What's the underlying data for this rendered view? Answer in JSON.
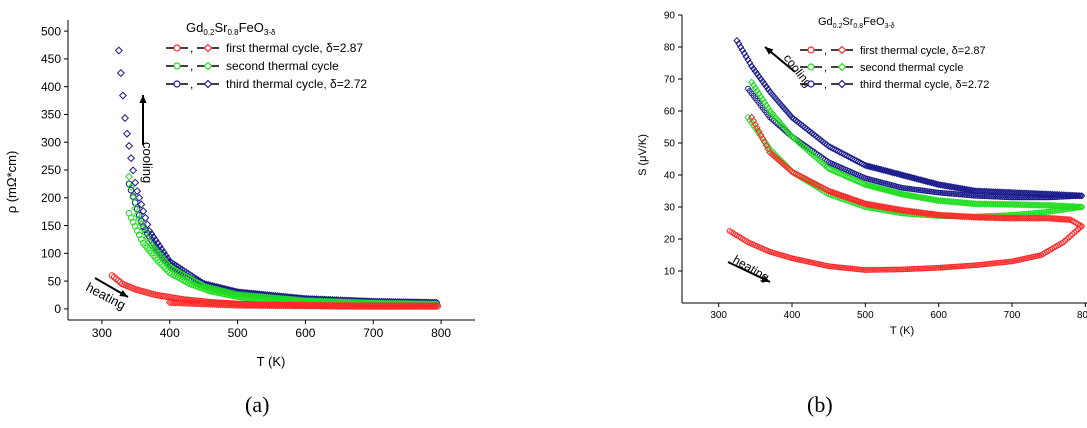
{
  "compound": {
    "base": "Gd",
    "sub1": "0.2",
    "el2": "Sr",
    "sub2": "0.8",
    "el3": "FeO",
    "sub3": "3-δ"
  },
  "legend": [
    {
      "name": "first thermal cycle, δ=2.87",
      "color": "#ff2a2a"
    },
    {
      "name": "second thermal cycle",
      "color": "#22dd22"
    },
    {
      "name": "third thermal cycle, δ=2.72",
      "color": "#1a1a8c"
    }
  ],
  "chart_data": [
    {
      "type": "scatter",
      "panel_label": "(a)",
      "xlabel": "T (K)",
      "ylabel": "ρ (mΩ*cm)",
      "xlim": [
        250,
        850
      ],
      "ylim": [
        -20,
        520
      ],
      "xticks": [
        300,
        400,
        500,
        600,
        700,
        800
      ],
      "yticks": [
        0,
        50,
        100,
        150,
        200,
        250,
        300,
        350,
        400,
        450,
        500
      ],
      "annotations": [
        "cooling",
        "heating"
      ],
      "series": [
        {
          "name": "first thermal cycle, δ=2.87",
          "segment": "heating",
          "x": [
            315,
            330,
            350,
            380,
            420,
            460,
            500,
            550,
            600,
            650,
            700,
            750,
            795
          ],
          "y": [
            60,
            45,
            35,
            25,
            17,
            12,
            9,
            7,
            6,
            5,
            5,
            5,
            5
          ]
        },
        {
          "name": "first thermal cycle, δ=2.87",
          "segment": "cooling",
          "x": [
            795,
            700,
            600,
            500,
            400
          ],
          "y": [
            5,
            5,
            6,
            7,
            12
          ]
        },
        {
          "name": "second thermal cycle",
          "segment": "heating",
          "x": [
            340,
            360,
            380,
            400,
            430,
            460,
            500,
            550,
            600,
            650,
            700,
            750,
            795
          ],
          "y": [
            172,
            120,
            90,
            65,
            45,
            32,
            22,
            15,
            12,
            10,
            9,
            8,
            8
          ]
        },
        {
          "name": "second thermal cycle",
          "segment": "cooling",
          "x": [
            795,
            700,
            600,
            500,
            450,
            400,
            370,
            350,
            340
          ],
          "y": [
            8,
            10,
            14,
            25,
            40,
            75,
            120,
            175,
            238
          ]
        },
        {
          "name": "third thermal cycle, δ=2.72",
          "segment": "heating",
          "x": [
            340,
            360,
            380,
            400,
            430,
            460,
            500,
            550,
            600,
            650,
            700,
            750,
            795
          ],
          "y": [
            225,
            150,
            110,
            80,
            55,
            40,
            30,
            22,
            18,
            15,
            13,
            12,
            11
          ]
        },
        {
          "name": "third thermal cycle, δ=2.72",
          "segment": "cooling",
          "x": [
            795,
            700,
            600,
            500,
            450,
            400,
            370,
            350,
            335,
            325
          ],
          "y": [
            11,
            13,
            18,
            30,
            45,
            85,
            140,
            220,
            330,
            465
          ]
        }
      ]
    },
    {
      "type": "scatter",
      "panel_label": "(b)",
      "xlabel": "T (K)",
      "ylabel": "S (μV/K)",
      "xlim": [
        250,
        850
      ],
      "ylim": [
        0,
        90
      ],
      "xticks": [
        300,
        400,
        500,
        600,
        700,
        800
      ],
      "yticks": [
        10,
        20,
        30,
        40,
        50,
        60,
        70,
        80,
        90
      ],
      "annotations": [
        "cooling",
        "heating"
      ],
      "series": [
        {
          "name": "first thermal cycle, δ=2.87",
          "segment": "heating",
          "x": [
            315,
            340,
            370,
            400,
            450,
            500,
            550,
            600,
            650,
            700,
            740,
            770,
            795
          ],
          "y": [
            22.5,
            19,
            16,
            14,
            11.5,
            10.3,
            10.5,
            11,
            11.8,
            13,
            15,
            19,
            24
          ]
        },
        {
          "name": "first thermal cycle, δ=2.87",
          "segment": "cooling",
          "x": [
            795,
            780,
            750,
            700,
            650,
            600,
            550,
            500,
            450,
            400,
            370,
            345
          ],
          "y": [
            24,
            26,
            26.5,
            26.5,
            26.8,
            27.5,
            29,
            31,
            35,
            41,
            47,
            58
          ]
        },
        {
          "name": "second thermal cycle",
          "segment": "heating",
          "x": [
            340,
            370,
            400,
            450,
            500,
            550,
            600,
            650,
            700,
            750,
            795
          ],
          "y": [
            58,
            48,
            41,
            34,
            30,
            28,
            27.2,
            27,
            27.5,
            28.5,
            30
          ]
        },
        {
          "name": "second thermal cycle",
          "segment": "cooling",
          "x": [
            795,
            750,
            700,
            650,
            600,
            550,
            500,
            450,
            400,
            370,
            345
          ],
          "y": [
            30,
            30.5,
            30.8,
            31,
            32,
            34,
            37,
            42,
            52,
            60,
            69
          ]
        },
        {
          "name": "third thermal cycle, δ=2.72",
          "segment": "heating",
          "x": [
            340,
            370,
            400,
            450,
            500,
            550,
            600,
            650,
            700,
            750,
            795
          ],
          "y": [
            67,
            58,
            52,
            44,
            39,
            36,
            34.5,
            33.5,
            33,
            33,
            33.5
          ]
        },
        {
          "name": "third thermal cycle, δ=2.72",
          "segment": "cooling",
          "x": [
            795,
            750,
            700,
            650,
            600,
            550,
            500,
            450,
            400,
            370,
            345,
            325
          ],
          "y": [
            33.5,
            34,
            34.5,
            35,
            37,
            40,
            43,
            49,
            58,
            66,
            74,
            82
          ]
        }
      ]
    }
  ]
}
